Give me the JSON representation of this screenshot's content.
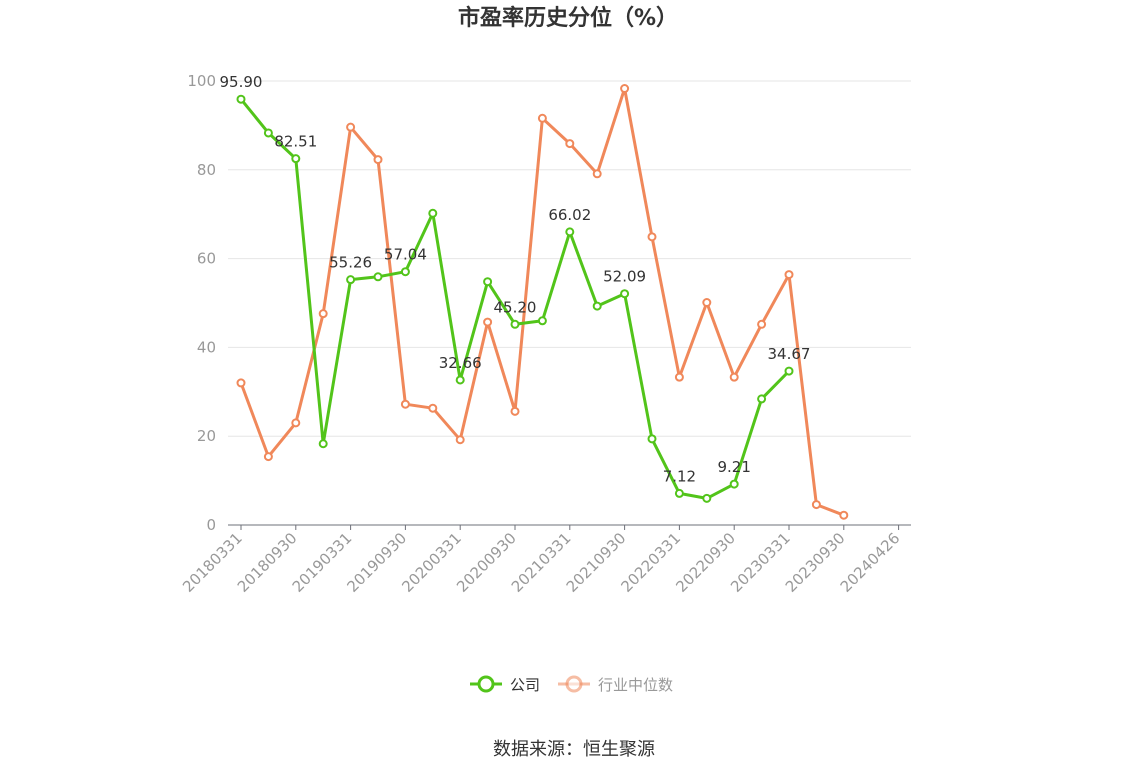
{
  "chart_data": {
    "type": "line",
    "title": "市盈率历史分位（%）",
    "ylim": [
      0,
      100
    ],
    "yticks": [
      0,
      20,
      40,
      60,
      80,
      100
    ],
    "grid": true,
    "legend_position": "bottom",
    "x_tick_labels": [
      "20180331",
      "20180930",
      "20190331",
      "20190930",
      "20200331",
      "20200930",
      "20210331",
      "20210930",
      "20220331",
      "20220930",
      "20230331",
      "20230930",
      "20240426"
    ],
    "x": [
      "20180331",
      "20180630",
      "20180930",
      "20181231",
      "20190331",
      "20190630",
      "20190930",
      "20191231",
      "20200331",
      "20200630",
      "20200930",
      "20201231",
      "20210331",
      "20210630",
      "20210930",
      "20211231",
      "20220331",
      "20220630",
      "20220930",
      "20221231",
      "20230331",
      "20230630",
      "20230930",
      "20231231",
      "20240426"
    ],
    "series": [
      {
        "name": "公司",
        "color": "#52c41a",
        "values": [
          95.9,
          88.3,
          82.51,
          18.3,
          55.26,
          55.9,
          57.04,
          70.2,
          32.66,
          54.8,
          45.2,
          46.0,
          66.02,
          49.3,
          52.09,
          19.4,
          7.12,
          6.0,
          9.21,
          28.4,
          34.67,
          null,
          null,
          null,
          null
        ],
        "labels": {
          "0": "95.90",
          "2": "82.51",
          "4": "55.26",
          "6": "57.04",
          "8": "32.66",
          "10": "45.20",
          "12": "66.02",
          "14": "52.09",
          "16": "7.12",
          "18": "9.21",
          "20": "34.67"
        }
      },
      {
        "name": "行业中位数",
        "color": "#f0885a",
        "values": [
          32.0,
          15.4,
          23.0,
          47.6,
          89.6,
          82.3,
          27.2,
          26.3,
          19.2,
          45.7,
          25.6,
          91.6,
          85.9,
          79.1,
          98.3,
          64.9,
          33.3,
          50.1,
          33.3,
          45.2,
          56.4,
          4.6,
          2.2,
          null,
          null
        ]
      }
    ]
  },
  "legend": {
    "company_label": "公司",
    "industry_label": "行业中位数",
    "company_color": "#52c41a",
    "industry_color": "#f0885a"
  },
  "source_text": "数据来源：恒生聚源"
}
